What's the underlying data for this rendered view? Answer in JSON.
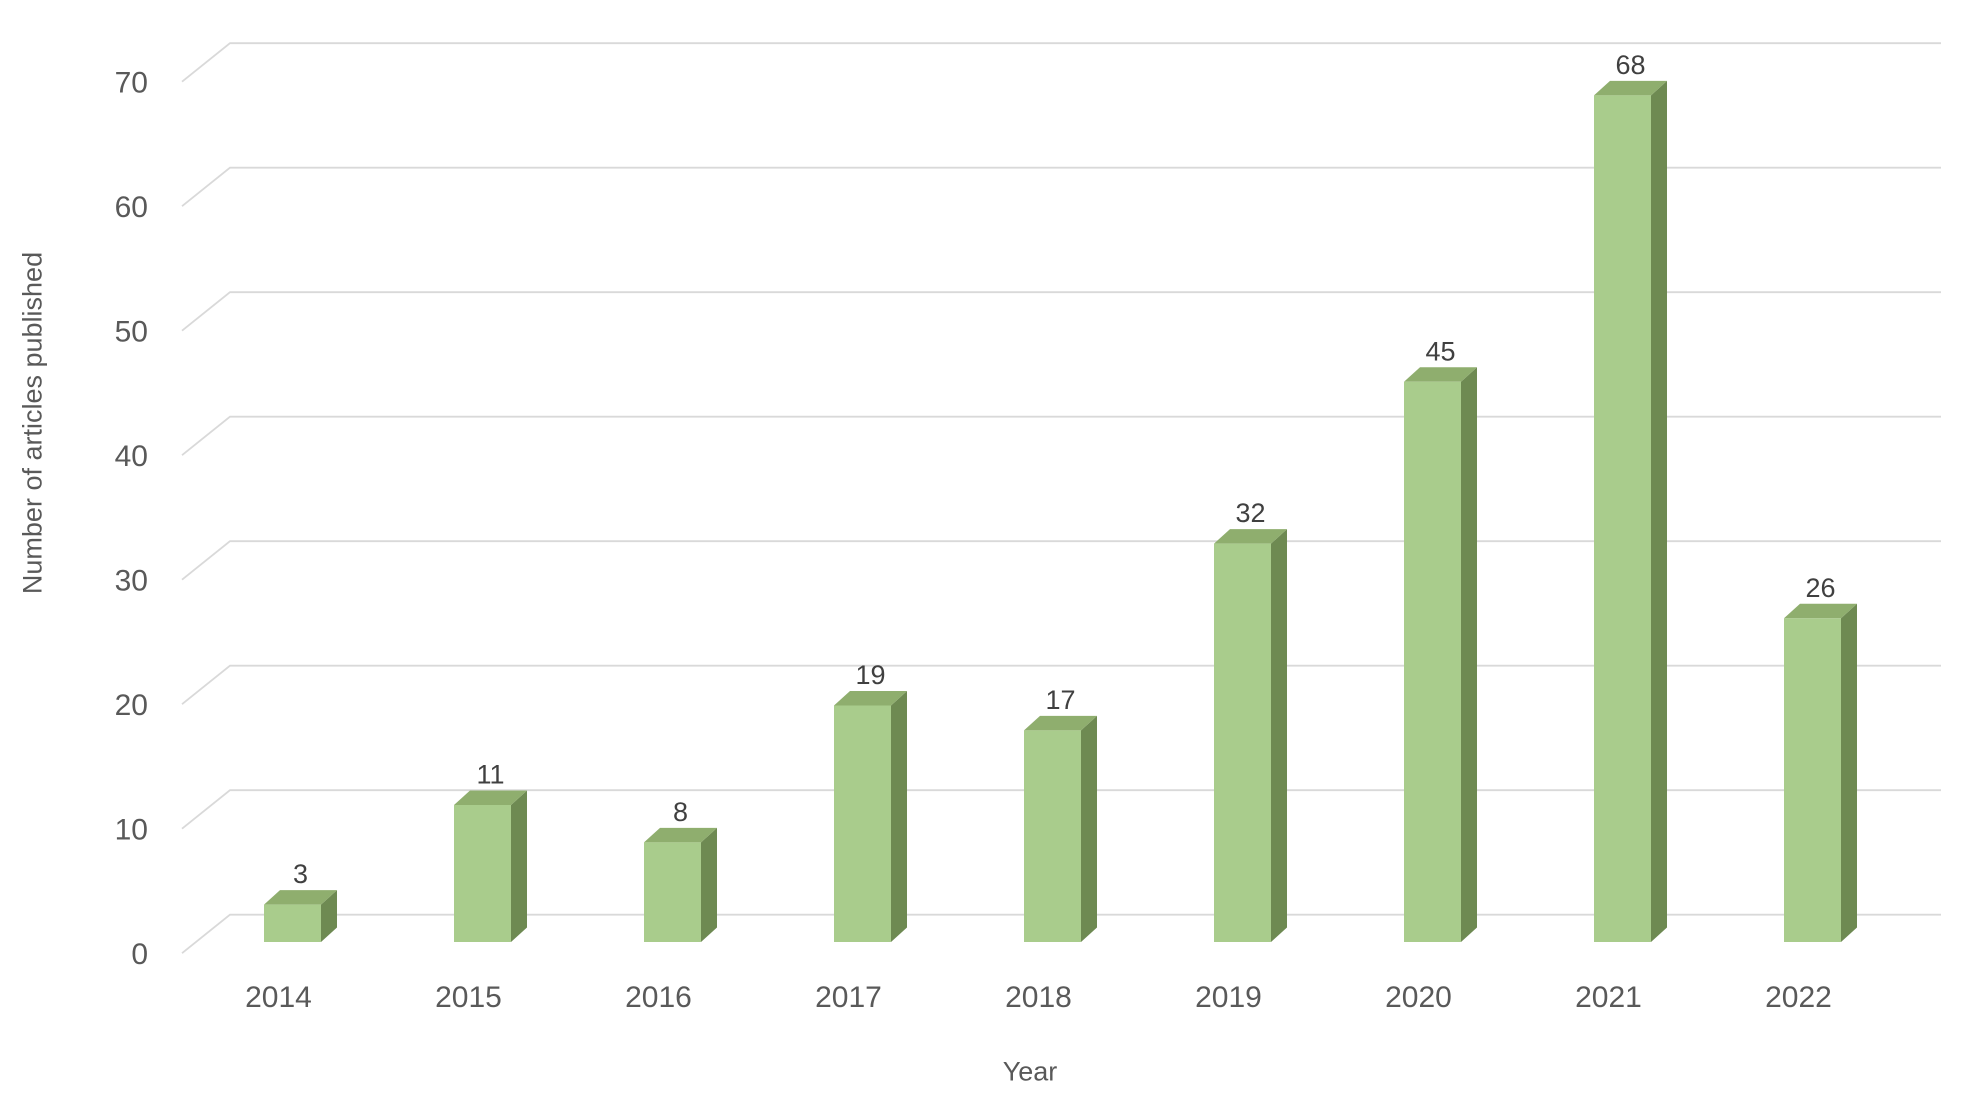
{
  "chart_data": {
    "type": "bar",
    "style": "3d-column",
    "title": "",
    "xlabel": "Year",
    "ylabel": "Number of articles published",
    "categories": [
      "2014",
      "2015",
      "2016",
      "2017",
      "2018",
      "2019",
      "2020",
      "2021",
      "2022"
    ],
    "values": [
      3,
      11,
      8,
      19,
      17,
      32,
      45,
      68,
      26
    ],
    "data_labels": [
      "3",
      "11",
      "8",
      "19",
      "17",
      "32",
      "45",
      "68",
      "26"
    ],
    "yticks": [
      0,
      10,
      20,
      30,
      40,
      50,
      60,
      70
    ],
    "ytick_labels": [
      "0",
      "10",
      "20",
      "30",
      "40",
      "50",
      "60",
      "70"
    ],
    "ylim": [
      0,
      70
    ],
    "grid": true,
    "legend": "none",
    "colors": {
      "bar_front": "#a9cc8c",
      "bar_top": "#8fae6e",
      "bar_side": "#6e8a52",
      "gridline": "#d9d9d9",
      "tick_label": "#595959",
      "axis_title": "#595959",
      "data_label": "#404040",
      "background": "#ffffff"
    }
  }
}
